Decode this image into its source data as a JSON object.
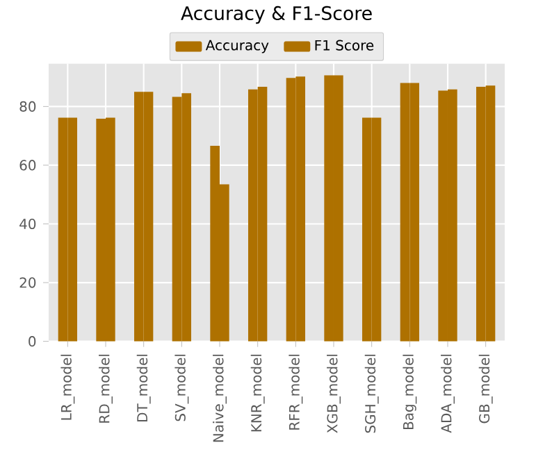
{
  "chart_data": {
    "type": "bar",
    "title": "Accuracy & F1-Score",
    "categories": [
      "LR_model",
      "RD_model",
      "DT_model",
      "SV_model",
      "Naive_model",
      "KNR_model",
      "RFR_model",
      "XGB_model",
      "SGH_model",
      "Bag_model",
      "ADA_model",
      "GB_model"
    ],
    "series": [
      {
        "name": "Accuracy",
        "color": "#ae7100",
        "values": [
          76.2,
          75.8,
          85.0,
          83.3,
          66.6,
          85.8,
          89.7,
          90.6,
          76.2,
          88.0,
          85.4,
          86.7
        ]
      },
      {
        "name": "F1 Score",
        "color": "#ae7100",
        "values": [
          76.2,
          76.2,
          85.0,
          84.5,
          53.5,
          86.7,
          90.2,
          90.6,
          76.2,
          88.0,
          85.8,
          87.1
        ]
      }
    ],
    "ylim": [
      0,
      94.6
    ],
    "yticks": [
      0,
      20,
      40,
      60,
      80
    ],
    "grid": true,
    "legend": "top"
  }
}
